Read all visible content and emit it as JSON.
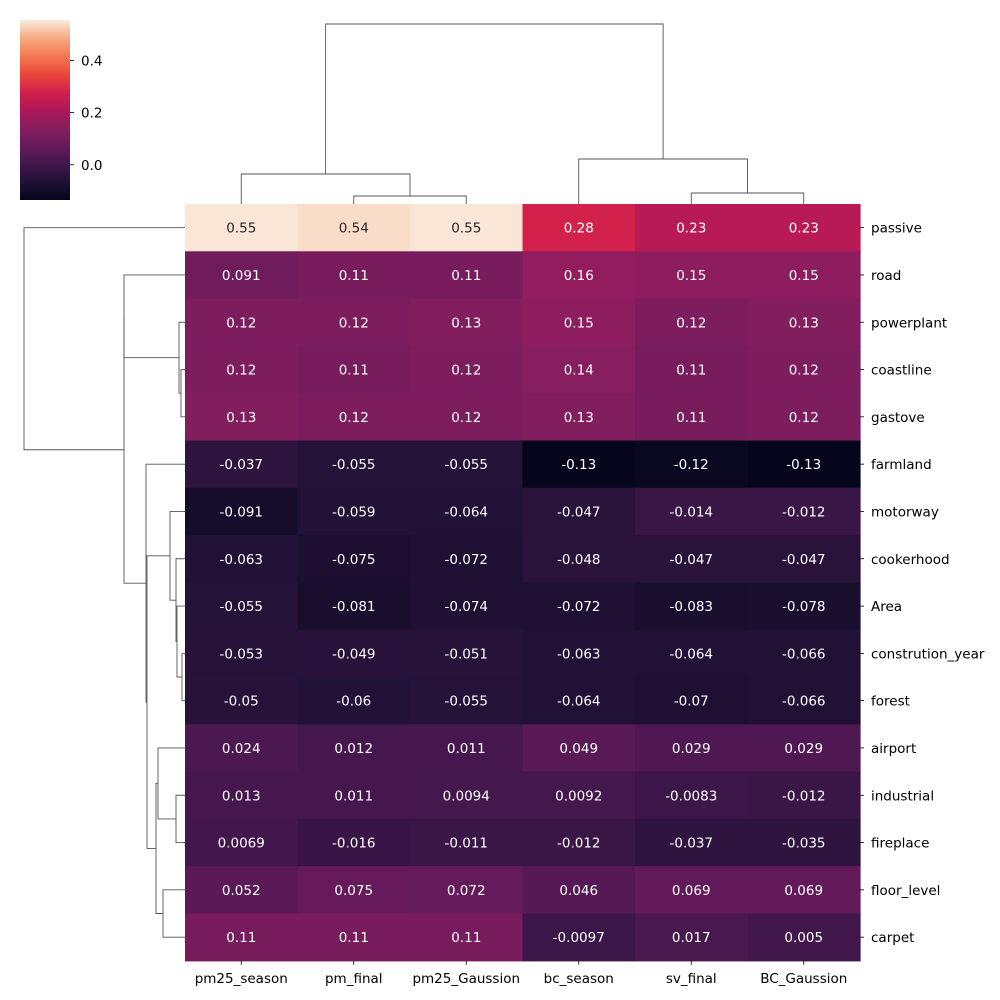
{
  "chart_data": {
    "type": "heatmap",
    "title": "",
    "xlabel": "",
    "ylabel": "",
    "columns": [
      "pm25_season",
      "pm_final",
      "pm25_Gaussion",
      "bc_season",
      "sv_final",
      "BC_Gaussion"
    ],
    "rows": [
      "passive",
      "road",
      "powerplant",
      "coastline",
      "gastove",
      "farmland",
      "motorway",
      "cookerhood",
      "Area",
      "constrution_year",
      "forest",
      "airport",
      "industrial",
      "fireplace",
      "floor_level",
      "carpet"
    ],
    "values": [
      [
        0.55,
        0.54,
        0.55,
        0.28,
        0.23,
        0.23
      ],
      [
        0.091,
        0.11,
        0.11,
        0.16,
        0.15,
        0.15
      ],
      [
        0.12,
        0.12,
        0.13,
        0.15,
        0.12,
        0.13
      ],
      [
        0.12,
        0.11,
        0.12,
        0.14,
        0.11,
        0.12
      ],
      [
        0.13,
        0.12,
        0.12,
        0.13,
        0.11,
        0.12
      ],
      [
        -0.037,
        -0.055,
        -0.055,
        -0.13,
        -0.12,
        -0.13
      ],
      [
        -0.091,
        -0.059,
        -0.064,
        -0.047,
        -0.014,
        -0.012
      ],
      [
        -0.063,
        -0.075,
        -0.072,
        -0.048,
        -0.047,
        -0.047
      ],
      [
        -0.055,
        -0.081,
        -0.074,
        -0.072,
        -0.083,
        -0.078
      ],
      [
        -0.053,
        -0.049,
        -0.051,
        -0.063,
        -0.064,
        -0.066
      ],
      [
        -0.05,
        -0.06,
        -0.055,
        -0.064,
        -0.07,
        -0.066
      ],
      [
        0.024,
        0.012,
        0.011,
        0.049,
        0.029,
        0.029
      ],
      [
        0.013,
        0.011,
        0.0094,
        0.0092,
        -0.0083,
        -0.012
      ],
      [
        0.0069,
        -0.016,
        -0.011,
        -0.012,
        -0.037,
        -0.035
      ],
      [
        0.052,
        0.075,
        0.072,
        0.046,
        0.069,
        0.069
      ],
      [
        0.11,
        0.11,
        0.11,
        -0.0097,
        0.017,
        0.005
      ]
    ],
    "labels": [
      [
        "0.55",
        "0.54",
        "0.55",
        "0.28",
        "0.23",
        "0.23"
      ],
      [
        "0.091",
        "0.11",
        "0.11",
        "0.16",
        "0.15",
        "0.15"
      ],
      [
        "0.12",
        "0.12",
        "0.13",
        "0.15",
        "0.12",
        "0.13"
      ],
      [
        "0.12",
        "0.11",
        "0.12",
        "0.14",
        "0.11",
        "0.12"
      ],
      [
        "0.13",
        "0.12",
        "0.12",
        "0.13",
        "0.11",
        "0.12"
      ],
      [
        "-0.037",
        "-0.055",
        "-0.055",
        "-0.13",
        "-0.12",
        "-0.13"
      ],
      [
        "-0.091",
        "-0.059",
        "-0.064",
        "-0.047",
        "-0.014",
        "-0.012"
      ],
      [
        "-0.063",
        "-0.075",
        "-0.072",
        "-0.048",
        "-0.047",
        "-0.047"
      ],
      [
        "-0.055",
        "-0.081",
        "-0.074",
        "-0.072",
        "-0.083",
        "-0.078"
      ],
      [
        "-0.053",
        "-0.049",
        "-0.051",
        "-0.063",
        "-0.064",
        "-0.066"
      ],
      [
        "-0.05",
        "-0.06",
        "-0.055",
        "-0.064",
        "-0.07",
        "-0.066"
      ],
      [
        "0.024",
        "0.012",
        "0.011",
        "0.049",
        "0.029",
        "0.029"
      ],
      [
        "0.013",
        "0.011",
        "0.0094",
        "0.0092",
        "-0.0083",
        "-0.012"
      ],
      [
        "0.0069",
        "-0.016",
        "-0.011",
        "-0.012",
        "-0.037",
        "-0.035"
      ],
      [
        "0.052",
        "0.075",
        "0.072",
        "0.046",
        "0.069",
        "0.069"
      ],
      [
        "0.11",
        "0.11",
        "0.11",
        "-0.0097",
        "0.017",
        "0.005"
      ]
    ],
    "colorbar": {
      "vmin": -0.135,
      "vmax": 0.555,
      "ticks": [
        0.4,
        0.2,
        0.0
      ],
      "tick_labels": [
        "0.4",
        "0.2",
        "0.0"
      ],
      "colormap": "rocket",
      "placement": "top-left"
    },
    "col_dendrogram": true,
    "row_dendrogram": true,
    "grid": false
  }
}
